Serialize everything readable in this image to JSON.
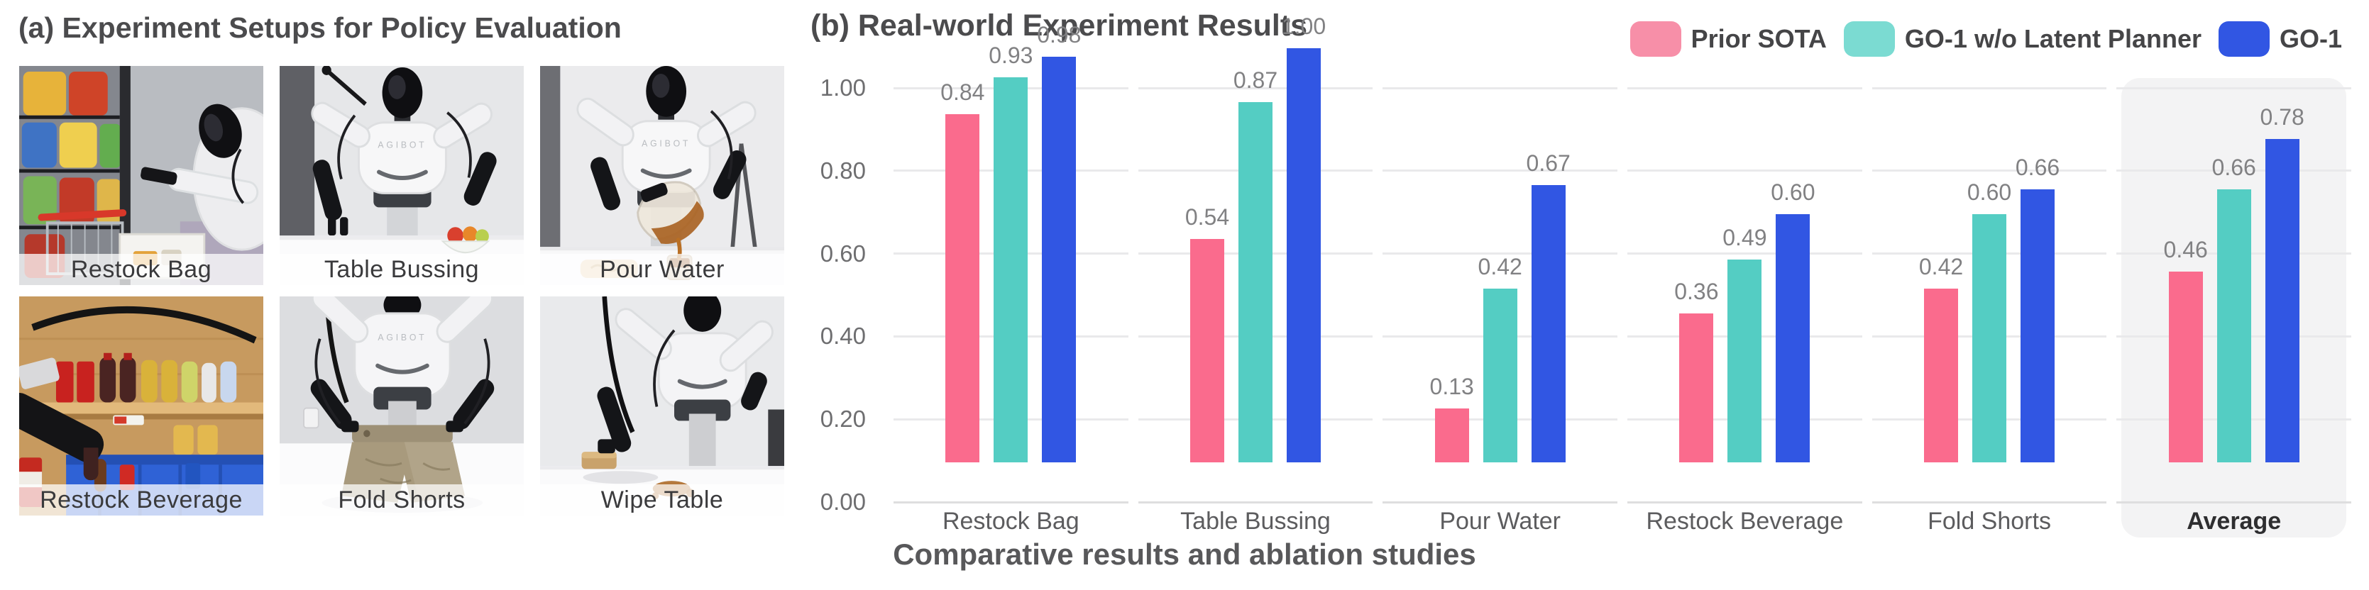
{
  "figure": {
    "panel_a": {
      "title": "(a) Experiment Setups for Policy Evaluation",
      "robot_brand": "AGIBOT",
      "photos": [
        {
          "label": "Restock Bag"
        },
        {
          "label": "Table Bussing"
        },
        {
          "label": "Pour Water"
        },
        {
          "label": "Restock Beverage"
        },
        {
          "label": "Fold Shorts"
        },
        {
          "label": "Wipe Table"
        }
      ]
    },
    "panel_b": {
      "title": "(b) Real-world Experiment Results"
    },
    "caption": "Comparative results and ablation studies"
  },
  "legend": [
    {
      "label": "Prior SOTA",
      "swatch_color": "#F78FA8"
    },
    {
      "label": "GO-1 w/o Latent Planner",
      "swatch_color": "#7BDBD2"
    },
    {
      "label": "GO-1",
      "swatch_color": "#3156E3"
    }
  ],
  "chart_data": {
    "type": "bar",
    "title": "(b) Real-world Experiment Results",
    "xlabel": "",
    "ylabel": "",
    "categories": [
      "Restock Bag",
      "Table Bussing",
      "Pour Water",
      "Restock Beverage",
      "Fold Shorts",
      "Average"
    ],
    "series": [
      {
        "name": "Prior SOTA",
        "color": "#FA6B8D",
        "values": [
          0.84,
          0.54,
          0.13,
          0.36,
          0.42,
          0.46
        ]
      },
      {
        "name": "GO-1 w/o Latent Planner",
        "color": "#54CDC3",
        "values": [
          0.93,
          0.87,
          0.42,
          0.49,
          0.6,
          0.66
        ]
      },
      {
        "name": "GO-1",
        "color": "#3156E3",
        "values": [
          0.98,
          1.0,
          0.67,
          0.6,
          0.66,
          0.78
        ]
      }
    ],
    "ylim": [
      0,
      1
    ],
    "yticks": [
      "1.00",
      "0.80",
      "0.60",
      "0.40",
      "0.20",
      "0.00"
    ],
    "grid": true,
    "value_labels": true,
    "value_label_format": "2-decimals",
    "legend_position": "top-right",
    "highlight_category": "Average",
    "highlight_color": "#f3f3f4"
  }
}
